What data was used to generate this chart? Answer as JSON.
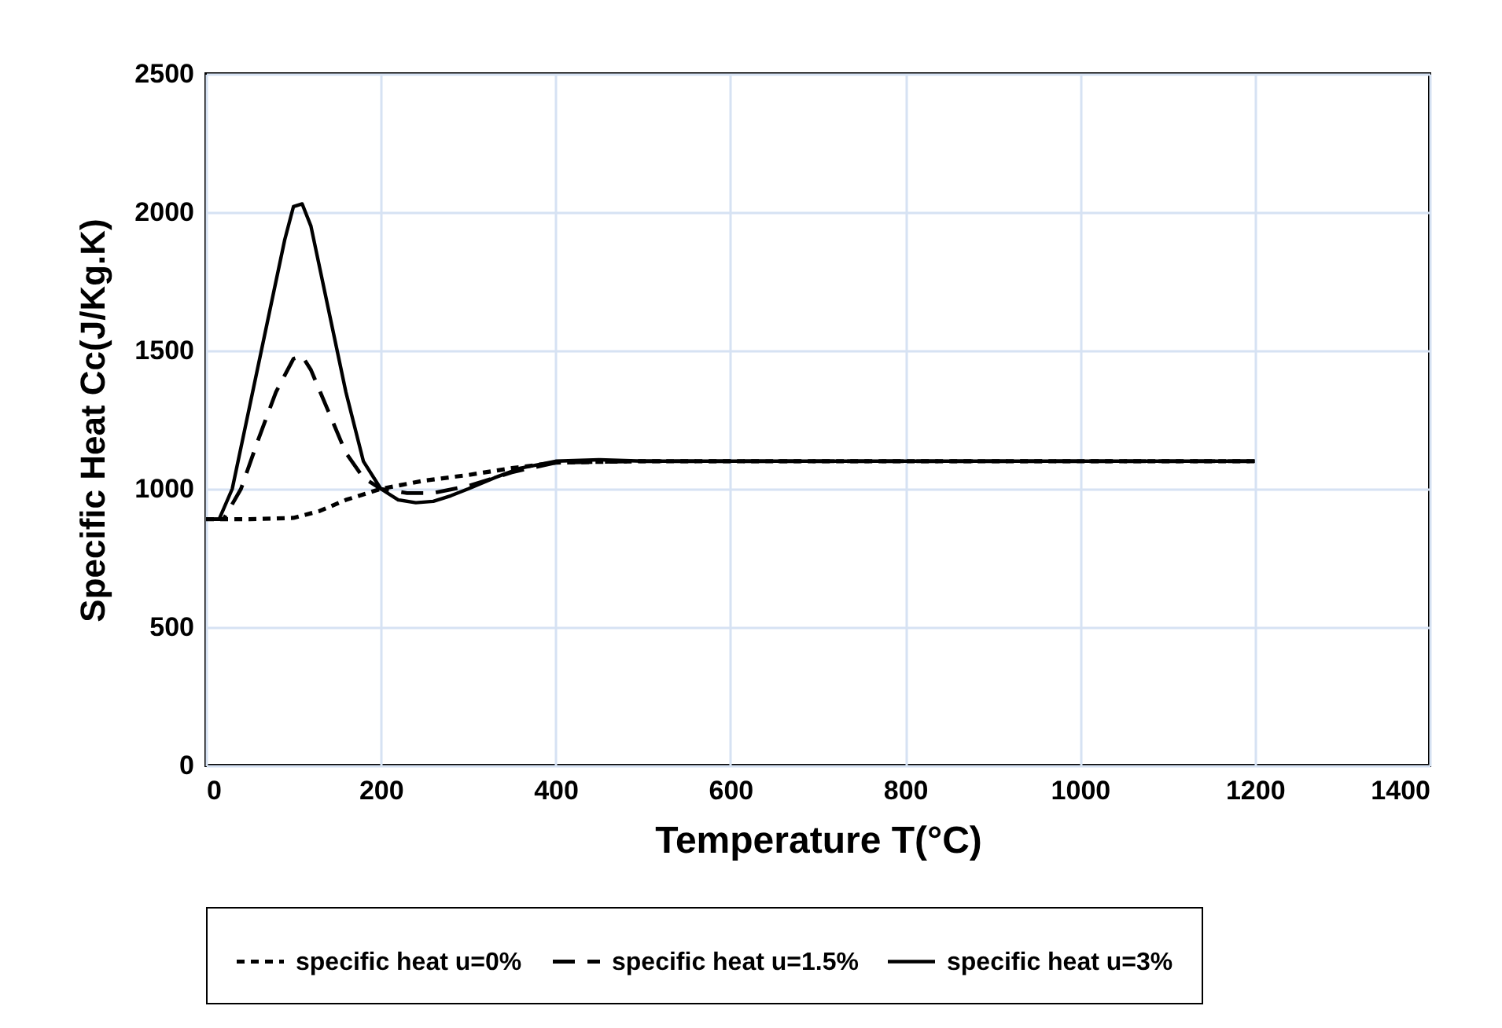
{
  "chart_data": {
    "type": "line",
    "xlabel": "Temperature T(°C)",
    "ylabel": "Specific Heat Cc(J/Kg.K)",
    "xlim": [
      0,
      1400
    ],
    "xticks": [
      0,
      200,
      400,
      600,
      800,
      1000,
      1200,
      1400
    ],
    "ylim": [
      0,
      2500
    ],
    "yticks": [
      0,
      500,
      1000,
      1500,
      2000,
      2500
    ],
    "grid": true,
    "legend": "bottom",
    "marker": "none",
    "series": [
      {
        "name": "specific heat u=0%",
        "color": "#000000",
        "line_style": "dotted",
        "x": [
          0,
          50,
          100,
          130,
          160,
          200,
          250,
          300,
          350,
          400,
          500,
          1200
        ],
        "values": [
          890,
          890,
          895,
          920,
          960,
          1000,
          1030,
          1050,
          1075,
          1095,
          1100,
          1100
        ]
      },
      {
        "name": "specific heat u=1.5%",
        "color": "#000000",
        "line_style": "dashed",
        "x": [
          0,
          20,
          40,
          60,
          80,
          100,
          110,
          120,
          140,
          160,
          180,
          200,
          230,
          260,
          300,
          350,
          400,
          500,
          1200
        ],
        "values": [
          890,
          890,
          1000,
          1180,
          1350,
          1470,
          1480,
          1430,
          1280,
          1130,
          1040,
          1000,
          985,
          985,
          1010,
          1060,
          1095,
          1100,
          1100
        ]
      },
      {
        "name": "specific heat u=3%",
        "color": "#000000",
        "line_style": "solid",
        "x": [
          0,
          15,
          30,
          50,
          70,
          90,
          100,
          110,
          120,
          140,
          160,
          180,
          200,
          220,
          240,
          260,
          280,
          300,
          330,
          360,
          400,
          450,
          500,
          600,
          800,
          1000,
          1200
        ],
        "values": [
          890,
          890,
          1000,
          1300,
          1600,
          1900,
          2020,
          2030,
          1950,
          1650,
          1350,
          1100,
          1000,
          960,
          950,
          955,
          975,
          1000,
          1040,
          1075,
          1100,
          1105,
          1100,
          1100,
          1100,
          1100,
          1100
        ]
      }
    ]
  }
}
